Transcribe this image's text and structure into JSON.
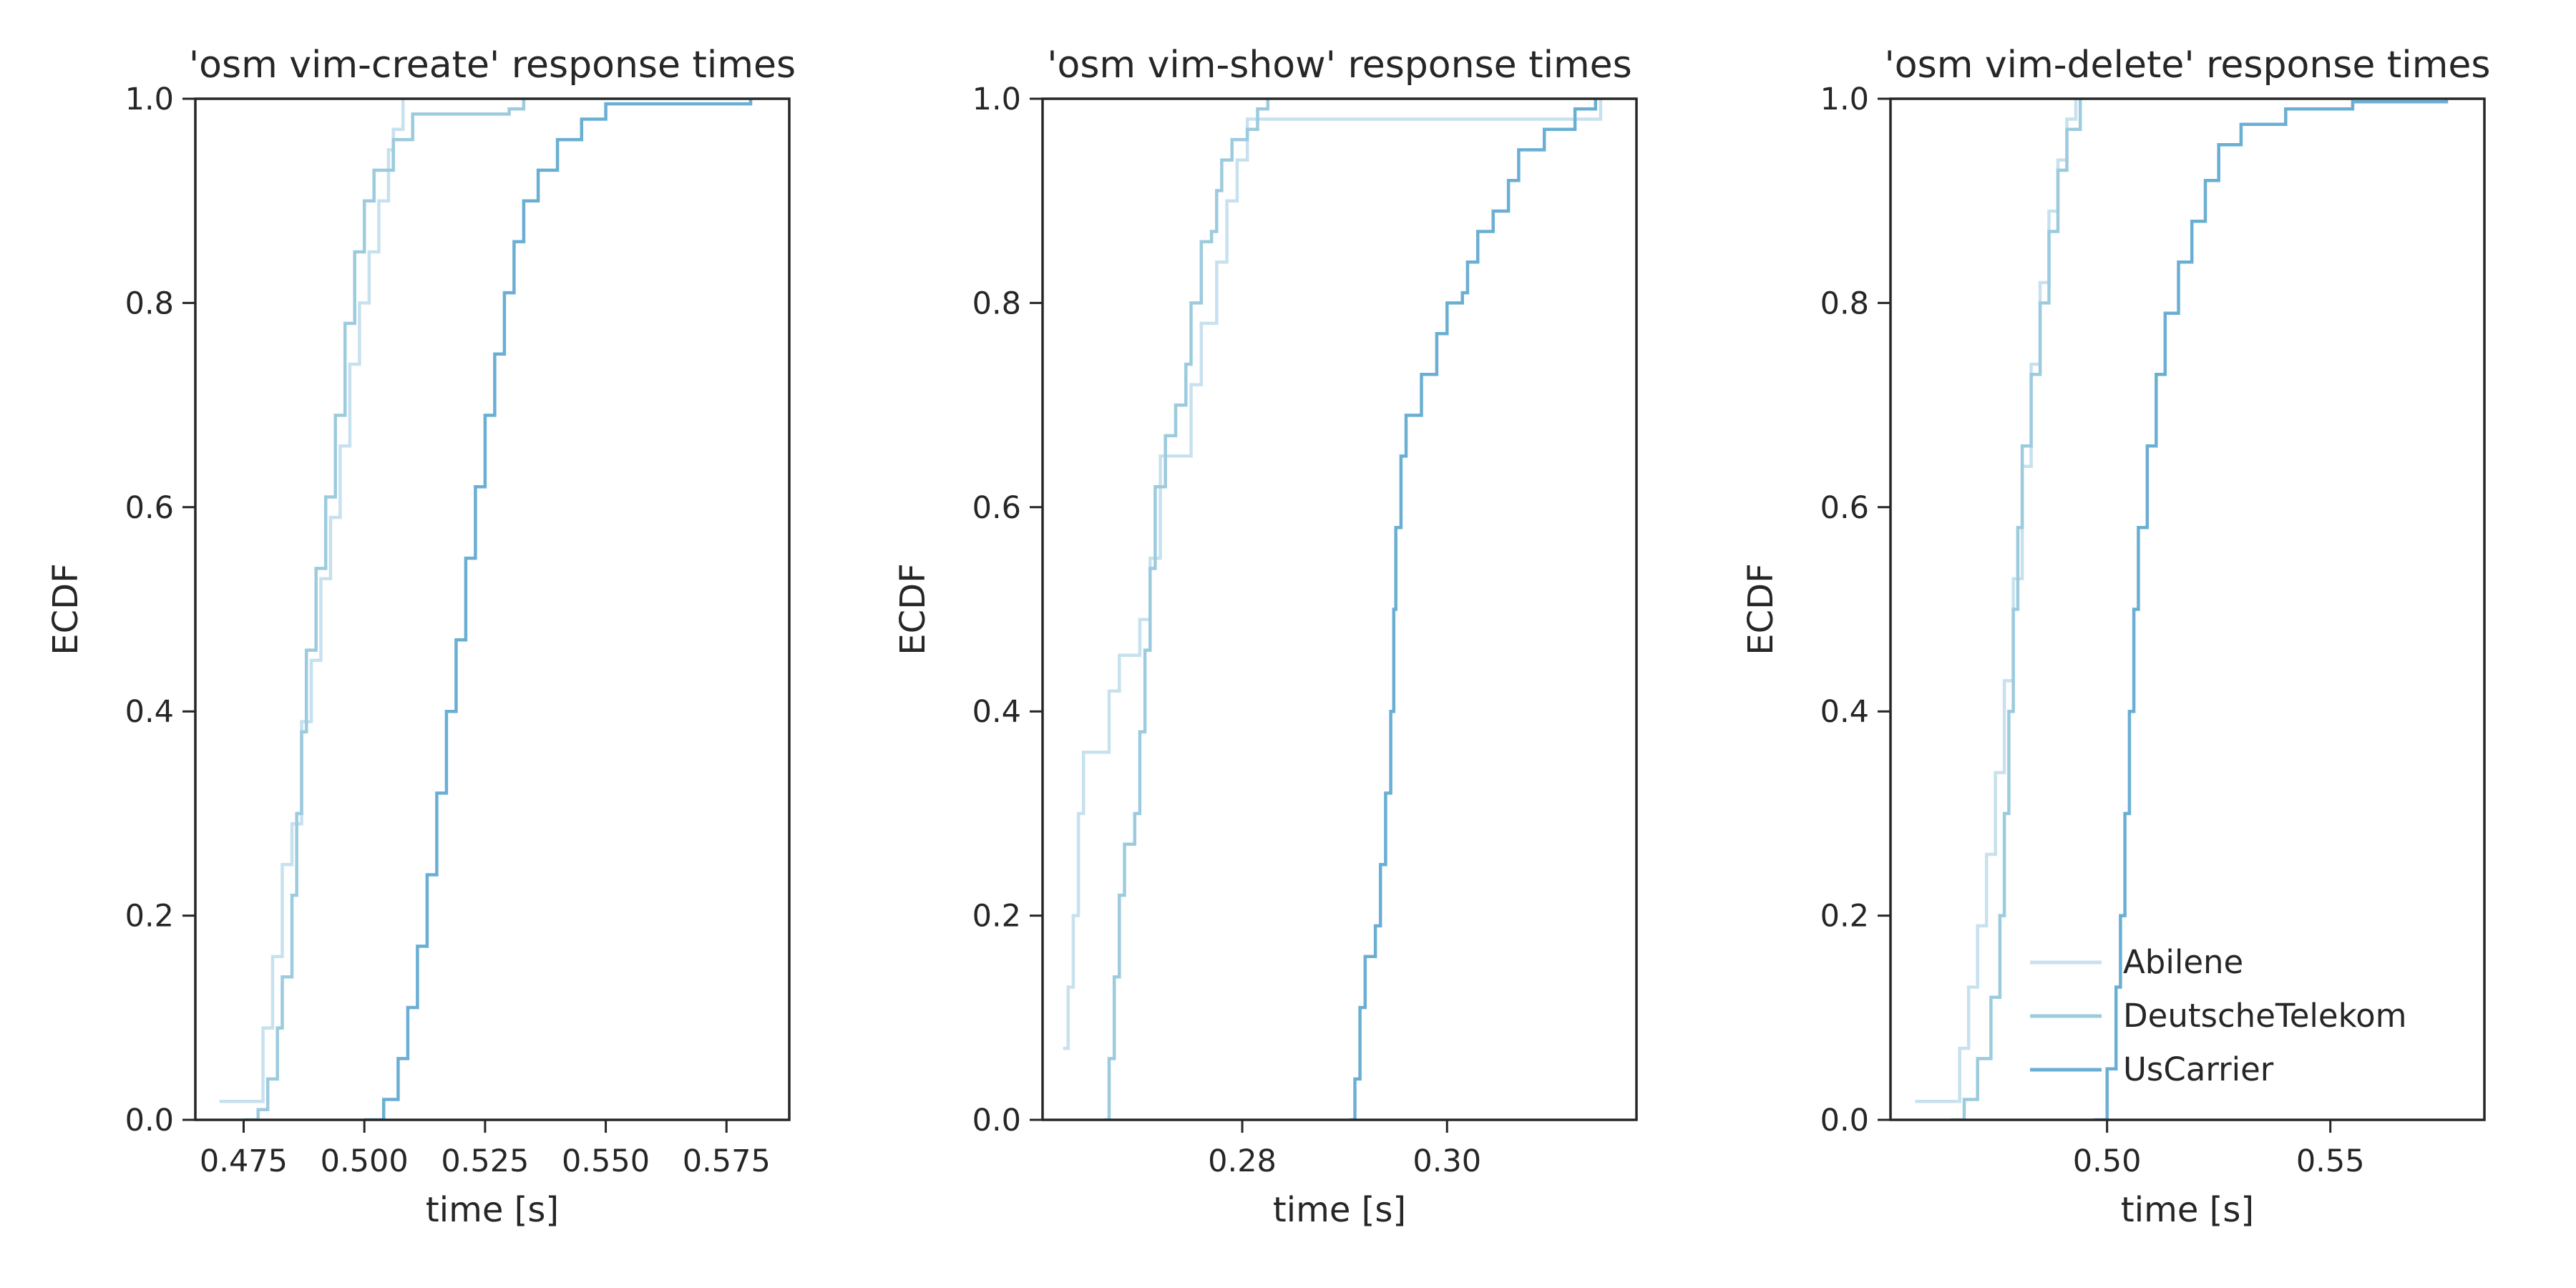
{
  "chart_data": [
    {
      "type": "line",
      "title": "'osm vim-create' response times",
      "xlabel": "time [s]",
      "ylabel": "ECDF",
      "xlim": [
        0.465,
        0.588
      ],
      "ylim": [
        0.0,
        1.0
      ],
      "xticks": [
        0.475,
        0.5,
        0.525,
        0.55,
        0.575
      ],
      "xtick_labels": [
        "0.475",
        "0.500",
        "0.525",
        "0.550",
        "0.575"
      ],
      "yticks": [
        0.0,
        0.2,
        0.4,
        0.6,
        0.8,
        1.0
      ],
      "ytick_labels": [
        "0.0",
        "0.2",
        "0.4",
        "0.6",
        "0.8",
        "1.0"
      ],
      "grid": false,
      "legend": null,
      "series": [
        {
          "name": "Abilene",
          "color": "#c7e1ee",
          "points": [
            [
              0.47,
              0.018
            ],
            [
              0.478,
              0.018
            ],
            [
              0.479,
              0.09
            ],
            [
              0.481,
              0.16
            ],
            [
              0.483,
              0.25
            ],
            [
              0.485,
              0.29
            ],
            [
              0.487,
              0.39
            ],
            [
              0.489,
              0.45
            ],
            [
              0.491,
              0.53
            ],
            [
              0.493,
              0.59
            ],
            [
              0.495,
              0.66
            ],
            [
              0.497,
              0.74
            ],
            [
              0.499,
              0.8
            ],
            [
              0.501,
              0.85
            ],
            [
              0.503,
              0.9
            ],
            [
              0.505,
              0.95
            ],
            [
              0.506,
              0.97
            ],
            [
              0.508,
              1.0
            ]
          ]
        },
        {
          "name": "DeutscheTelekom",
          "color": "#9ccbde",
          "points": [
            [
              0.475,
              0.0
            ],
            [
              0.478,
              0.01
            ],
            [
              0.48,
              0.04
            ],
            [
              0.482,
              0.09
            ],
            [
              0.483,
              0.14
            ],
            [
              0.485,
              0.22
            ],
            [
              0.486,
              0.3
            ],
            [
              0.487,
              0.38
            ],
            [
              0.488,
              0.46
            ],
            [
              0.49,
              0.54
            ],
            [
              0.492,
              0.61
            ],
            [
              0.494,
              0.69
            ],
            [
              0.496,
              0.78
            ],
            [
              0.498,
              0.85
            ],
            [
              0.5,
              0.9
            ],
            [
              0.502,
              0.93
            ],
            [
              0.506,
              0.96
            ],
            [
              0.51,
              0.985
            ],
            [
              0.53,
              0.99
            ],
            [
              0.533,
              1.0
            ]
          ]
        },
        {
          "name": "UsCarrier",
          "color": "#6aafd3",
          "points": [
            [
              0.5,
              0.0
            ],
            [
              0.504,
              0.02
            ],
            [
              0.507,
              0.06
            ],
            [
              0.509,
              0.11
            ],
            [
              0.511,
              0.17
            ],
            [
              0.513,
              0.24
            ],
            [
              0.515,
              0.32
            ],
            [
              0.517,
              0.4
            ],
            [
              0.519,
              0.47
            ],
            [
              0.521,
              0.55
            ],
            [
              0.523,
              0.62
            ],
            [
              0.525,
              0.69
            ],
            [
              0.527,
              0.75
            ],
            [
              0.529,
              0.81
            ],
            [
              0.531,
              0.86
            ],
            [
              0.533,
              0.9
            ],
            [
              0.536,
              0.93
            ],
            [
              0.54,
              0.96
            ],
            [
              0.545,
              0.98
            ],
            [
              0.55,
              0.995
            ],
            [
              0.58,
              1.0
            ]
          ]
        }
      ]
    },
    {
      "type": "line",
      "title": "'osm vim-show' response times",
      "xlabel": "time [s]",
      "ylabel": "ECDF",
      "xlim": [
        0.2605,
        0.3185
      ],
      "ylim": [
        0.0,
        1.0
      ],
      "xticks": [
        0.28,
        0.3
      ],
      "xtick_labels": [
        "0.28",
        "0.30"
      ],
      "yticks": [
        0.0,
        0.2,
        0.4,
        0.6,
        0.8,
        1.0
      ],
      "ytick_labels": [
        "0.0",
        "0.2",
        "0.4",
        "0.6",
        "0.8",
        "1.0"
      ],
      "grid": false,
      "legend": null,
      "series": [
        {
          "name": "Abilene",
          "color": "#c7e1ee",
          "points": [
            [
              0.2625,
              0.07
            ],
            [
              0.263,
              0.13
            ],
            [
              0.2635,
              0.2
            ],
            [
              0.264,
              0.3
            ],
            [
              0.2645,
              0.36
            ],
            [
              0.2665,
              0.36
            ],
            [
              0.267,
              0.42
            ],
            [
              0.268,
              0.455
            ],
            [
              0.2695,
              0.455
            ],
            [
              0.27,
              0.49
            ],
            [
              0.271,
              0.55
            ],
            [
              0.272,
              0.65
            ],
            [
              0.2745,
              0.65
            ],
            [
              0.275,
              0.72
            ],
            [
              0.276,
              0.78
            ],
            [
              0.2775,
              0.84
            ],
            [
              0.2785,
              0.9
            ],
            [
              0.2795,
              0.94
            ],
            [
              0.2805,
              0.98
            ],
            [
              0.3145,
              0.98
            ],
            [
              0.315,
              1.0
            ]
          ]
        },
        {
          "name": "DeutscheTelekom",
          "color": "#9ccbde",
          "points": [
            [
              0.2665,
              0.0
            ],
            [
              0.267,
              0.06
            ],
            [
              0.2675,
              0.14
            ],
            [
              0.268,
              0.22
            ],
            [
              0.2685,
              0.27
            ],
            [
              0.2695,
              0.3
            ],
            [
              0.27,
              0.38
            ],
            [
              0.2705,
              0.46
            ],
            [
              0.271,
              0.54
            ],
            [
              0.2715,
              0.62
            ],
            [
              0.2725,
              0.67
            ],
            [
              0.2735,
              0.7
            ],
            [
              0.2745,
              0.74
            ],
            [
              0.275,
              0.8
            ],
            [
              0.276,
              0.86
            ],
            [
              0.277,
              0.87
            ],
            [
              0.2775,
              0.91
            ],
            [
              0.278,
              0.94
            ],
            [
              0.279,
              0.96
            ],
            [
              0.2805,
              0.97
            ],
            [
              0.2815,
              0.99
            ],
            [
              0.2825,
              1.0
            ]
          ]
        },
        {
          "name": "UsCarrier",
          "color": "#6aafd3",
          "points": [
            [
              0.2905,
              0.0
            ],
            [
              0.291,
              0.04
            ],
            [
              0.2915,
              0.11
            ],
            [
              0.292,
              0.16
            ],
            [
              0.293,
              0.19
            ],
            [
              0.2935,
              0.25
            ],
            [
              0.294,
              0.32
            ],
            [
              0.2945,
              0.4
            ],
            [
              0.2948,
              0.5
            ],
            [
              0.295,
              0.58
            ],
            [
              0.2955,
              0.65
            ],
            [
              0.296,
              0.69
            ],
            [
              0.2975,
              0.73
            ],
            [
              0.299,
              0.77
            ],
            [
              0.3,
              0.8
            ],
            [
              0.3015,
              0.81
            ],
            [
              0.302,
              0.84
            ],
            [
              0.303,
              0.87
            ],
            [
              0.3045,
              0.89
            ],
            [
              0.306,
              0.92
            ],
            [
              0.307,
              0.95
            ],
            [
              0.3095,
              0.97
            ],
            [
              0.3125,
              0.99
            ],
            [
              0.3145,
              1.0
            ]
          ]
        }
      ]
    },
    {
      "type": "line",
      "title": "'osm vim-delete' response times",
      "xlabel": "time [s]",
      "ylabel": "ECDF",
      "xlim": [
        0.4515,
        0.5845
      ],
      "ylim": [
        0.0,
        1.0
      ],
      "xticks": [
        0.5,
        0.55
      ],
      "xtick_labels": [
        "0.50",
        "0.55"
      ],
      "yticks": [
        0.0,
        0.2,
        0.4,
        0.6,
        0.8,
        1.0
      ],
      "ytick_labels": [
        "0.0",
        "0.2",
        "0.4",
        "0.6",
        "0.8",
        "1.0"
      ],
      "grid": false,
      "legend": {
        "position": "lower-right",
        "entries": [
          "Abilene",
          "DeutscheTelekom",
          "UsCarrier"
        ]
      },
      "series": [
        {
          "name": "Abilene",
          "color": "#c7e1ee",
          "points": [
            [
              0.457,
              0.018
            ],
            [
              0.465,
              0.018
            ],
            [
              0.467,
              0.07
            ],
            [
              0.469,
              0.13
            ],
            [
              0.471,
              0.19
            ],
            [
              0.473,
              0.26
            ],
            [
              0.475,
              0.34
            ],
            [
              0.477,
              0.43
            ],
            [
              0.479,
              0.53
            ],
            [
              0.481,
              0.64
            ],
            [
              0.483,
              0.74
            ],
            [
              0.485,
              0.82
            ],
            [
              0.487,
              0.89
            ],
            [
              0.489,
              0.94
            ],
            [
              0.491,
              0.98
            ],
            [
              0.493,
              1.0
            ]
          ]
        },
        {
          "name": "DeutscheTelekom",
          "color": "#9ccbde",
          "points": [
            [
              0.465,
              0.0
            ],
            [
              0.468,
              0.02
            ],
            [
              0.471,
              0.06
            ],
            [
              0.474,
              0.12
            ],
            [
              0.476,
              0.2
            ],
            [
              0.477,
              0.3
            ],
            [
              0.478,
              0.4
            ],
            [
              0.479,
              0.5
            ],
            [
              0.48,
              0.58
            ],
            [
              0.481,
              0.66
            ],
            [
              0.483,
              0.73
            ],
            [
              0.485,
              0.8
            ],
            [
              0.487,
              0.87
            ],
            [
              0.489,
              0.93
            ],
            [
              0.491,
              0.97
            ],
            [
              0.494,
              1.0
            ]
          ]
        },
        {
          "name": "UsCarrier",
          "color": "#6aafd3",
          "points": [
            [
              0.497,
              0.0
            ],
            [
              0.5,
              0.05
            ],
            [
              0.502,
              0.13
            ],
            [
              0.503,
              0.2
            ],
            [
              0.504,
              0.3
            ],
            [
              0.505,
              0.4
            ],
            [
              0.506,
              0.5
            ],
            [
              0.507,
              0.58
            ],
            [
              0.509,
              0.66
            ],
            [
              0.511,
              0.73
            ],
            [
              0.513,
              0.79
            ],
            [
              0.516,
              0.84
            ],
            [
              0.519,
              0.88
            ],
            [
              0.522,
              0.92
            ],
            [
              0.525,
              0.955
            ],
            [
              0.53,
              0.975
            ],
            [
              0.54,
              0.99
            ],
            [
              0.555,
              0.997
            ],
            [
              0.576,
              1.0
            ]
          ]
        }
      ]
    }
  ]
}
